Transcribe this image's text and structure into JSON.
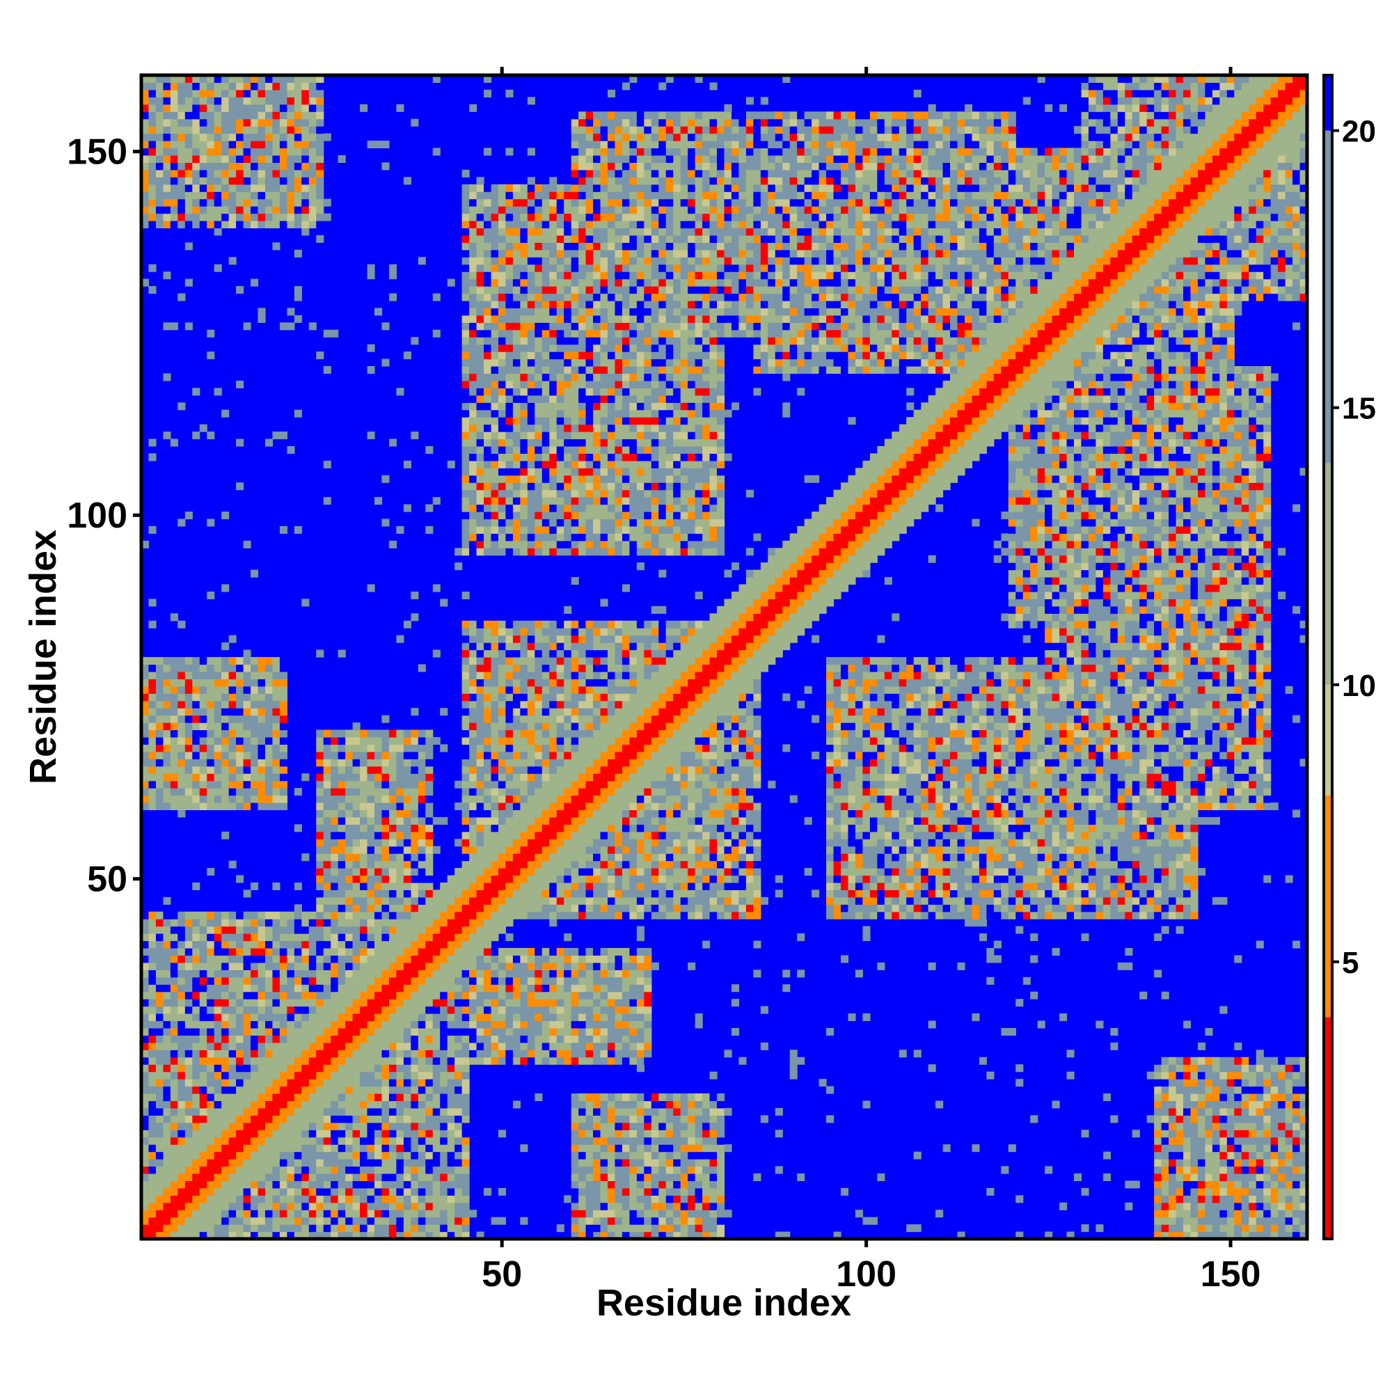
{
  "chart_data": {
    "type": "heatmap",
    "title": "",
    "xlabel": "Residue index",
    "ylabel": "Residue index",
    "n_residues": 160,
    "xlim": [
      1,
      160
    ],
    "ylim": [
      1,
      160
    ],
    "x_ticks": [
      50,
      100,
      150
    ],
    "y_ticks": [
      50,
      100,
      150
    ],
    "x_tick_labels": [
      "50",
      "100",
      "150"
    ],
    "y_tick_labels": [
      "50",
      "100",
      "150"
    ],
    "colorbar": {
      "range": [
        0,
        21
      ],
      "ticks": [
        5,
        10,
        15,
        20
      ],
      "tick_labels": [
        "5",
        "10",
        "15",
        "20"
      ],
      "bands": [
        {
          "from": 0,
          "to": 4,
          "color": "#ff0000"
        },
        {
          "from": 4,
          "to": 8,
          "color": "#ff8c00"
        },
        {
          "from": 8,
          "to": 10,
          "color": "#c8c890"
        },
        {
          "from": 10,
          "to": 14,
          "color": "#9fb48a"
        },
        {
          "from": 14,
          "to": 20,
          "color": "#7a96a8"
        },
        {
          "from": 20,
          "to": 21,
          "color": "#0000ff"
        }
      ]
    },
    "diagonal_distance": 0,
    "background_distance": 21,
    "contact_regions": [
      {
        "x": [
          1,
          45
        ],
        "y": [
          1,
          45
        ],
        "level": 0.9
      },
      {
        "x": [
          1,
          20
        ],
        "y": [
          60,
          80
        ],
        "level": 0.7
      },
      {
        "x": [
          25,
          35
        ],
        "y": [
          45,
          60
        ],
        "level": 0.6
      },
      {
        "x": [
          45,
          80
        ],
        "y": [
          45,
          85
        ],
        "level": 0.7
      },
      {
        "x": [
          45,
          80
        ],
        "y": [
          95,
          145
        ],
        "level": 0.8
      },
      {
        "x": [
          65,
          80
        ],
        "y": [
          1,
          10
        ],
        "level": 0.5
      },
      {
        "x": [
          40,
          70
        ],
        "y": [
          25,
          40
        ],
        "level": 0.6
      },
      {
        "x": [
          85,
          150
        ],
        "y": [
          120,
          145
        ],
        "level": 0.8
      },
      {
        "x": [
          100,
          125
        ],
        "y": [
          50,
          80
        ],
        "level": 0.8
      },
      {
        "x": [
          125,
          155
        ],
        "y": [
          60,
          120
        ],
        "level": 0.8
      },
      {
        "x": [
          130,
          160
        ],
        "y": [
          145,
          160
        ],
        "level": 0.9
      },
      {
        "x": [
          145,
          160
        ],
        "y": [
          1,
          20
        ],
        "level": 0.6
      },
      {
        "x": [
          1,
          25
        ],
        "y": [
          140,
          160
        ],
        "level": 0.6
      }
    ]
  }
}
